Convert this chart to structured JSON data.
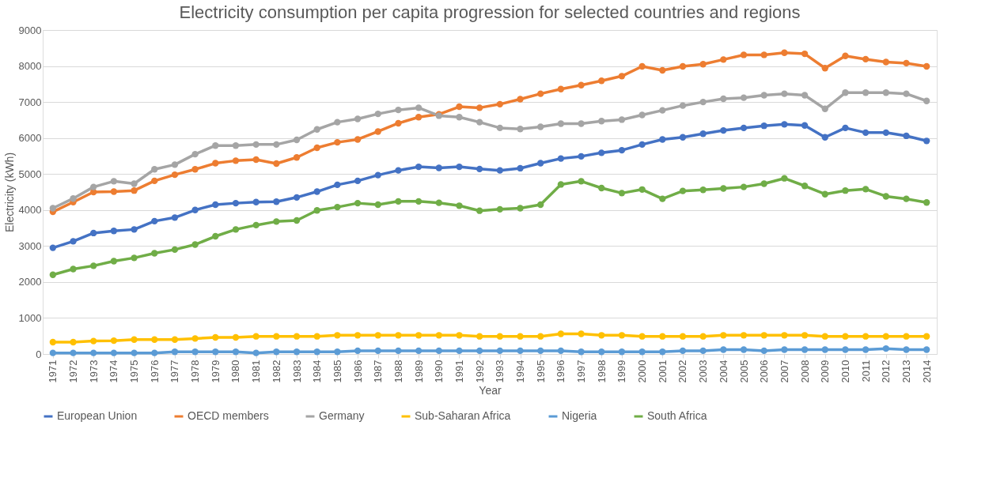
{
  "chart_data": {
    "type": "line",
    "title": "Electricity consumption per capita progression for selected countries and regions",
    "xlabel": "Year",
    "ylabel": "Electricity (kWh)",
    "categories": [
      "1971",
      "1972",
      "1973",
      "1974",
      "1975",
      "1976",
      "1977",
      "1978",
      "1979",
      "1980",
      "1981",
      "1982",
      "1983",
      "1984",
      "1985",
      "1986",
      "1987",
      "1988",
      "1989",
      "1990",
      "1991",
      "1992",
      "1993",
      "1994",
      "1995",
      "1996",
      "1997",
      "1998",
      "1999",
      "2000",
      "2001",
      "2002",
      "2003",
      "2004",
      "2005",
      "2006",
      "2007",
      "2008",
      "2009",
      "2010",
      "2011",
      "2012",
      "2013",
      "2014"
    ],
    "ylim": [
      0,
      9000
    ],
    "yticks": [
      0,
      1000,
      2000,
      3000,
      4000,
      5000,
      6000,
      7000,
      8000,
      9000
    ],
    "grid": "y",
    "legend": "bottom",
    "marker": "circle",
    "line_style": "solid",
    "series": [
      {
        "name": "European Union",
        "color": "#4472c4",
        "values": [
          2950,
          3130,
          3360,
          3420,
          3460,
          3690,
          3790,
          4000,
          4150,
          4190,
          4220,
          4230,
          4350,
          4510,
          4700,
          4810,
          4970,
          5100,
          5200,
          5170,
          5200,
          5140,
          5100,
          5160,
          5300,
          5430,
          5490,
          5590,
          5660,
          5820,
          5960,
          6020,
          6120,
          6210,
          6280,
          6340,
          6380,
          6350,
          6020,
          6280,
          6150,
          6150,
          6060,
          5920
        ]
      },
      {
        "name": "OECD members",
        "color": "#ed7d31",
        "values": [
          3950,
          4220,
          4500,
          4510,
          4540,
          4810,
          4980,
          5130,
          5300,
          5370,
          5400,
          5290,
          5460,
          5730,
          5880,
          5960,
          6180,
          6410,
          6580,
          6660,
          6870,
          6840,
          6940,
          7080,
          7230,
          7360,
          7470,
          7590,
          7720,
          7990,
          7880,
          7990,
          8050,
          8180,
          8310,
          8310,
          8370,
          8340,
          7940,
          8280,
          8190,
          8110,
          8080,
          7990
        ]
      },
      {
        "name": "Germany",
        "color": "#a5a5a5",
        "values": [
          4050,
          4320,
          4640,
          4800,
          4730,
          5130,
          5260,
          5550,
          5790,
          5790,
          5820,
          5820,
          5950,
          6240,
          6440,
          6530,
          6670,
          6780,
          6840,
          6620,
          6580,
          6440,
          6280,
          6250,
          6310,
          6400,
          6400,
          6470,
          6510,
          6640,
          6770,
          6900,
          7000,
          7090,
          7120,
          7190,
          7230,
          7190,
          6810,
          7260,
          7260,
          7260,
          7230,
          7030
        ]
      },
      {
        "name": "Sub-Saharan Africa",
        "color": "#ffc000",
        "values": [
          330,
          330,
          360,
          370,
          400,
          400,
          400,
          430,
          460,
          460,
          490,
          490,
          490,
          490,
          520,
          520,
          520,
          520,
          520,
          520,
          520,
          490,
          490,
          490,
          490,
          560,
          560,
          520,
          520,
          490,
          490,
          490,
          490,
          520,
          520,
          520,
          520,
          520,
          490,
          490,
          490,
          490,
          490,
          490
        ]
      },
      {
        "name": "Nigeria",
        "color": "#5b9bd5",
        "values": [
          30,
          30,
          30,
          30,
          30,
          30,
          60,
          60,
          60,
          60,
          30,
          60,
          60,
          60,
          60,
          90,
          90,
          90,
          90,
          90,
          90,
          90,
          90,
          90,
          90,
          90,
          60,
          60,
          60,
          60,
          60,
          90,
          90,
          120,
          120,
          90,
          120,
          120,
          120,
          120,
          120,
          150,
          120,
          120
        ]
      },
      {
        "name": "South Africa",
        "color": "#70ad47",
        "values": [
          2200,
          2360,
          2450,
          2580,
          2670,
          2800,
          2900,
          3040,
          3270,
          3460,
          3580,
          3680,
          3710,
          3990,
          4080,
          4190,
          4150,
          4240,
          4240,
          4200,
          4120,
          3980,
          4020,
          4050,
          4150,
          4710,
          4800,
          4610,
          4470,
          4570,
          4310,
          4530,
          4560,
          4600,
          4640,
          4730,
          4880,
          4670,
          4440,
          4540,
          4580,
          4380,
          4310,
          4210
        ]
      }
    ]
  }
}
